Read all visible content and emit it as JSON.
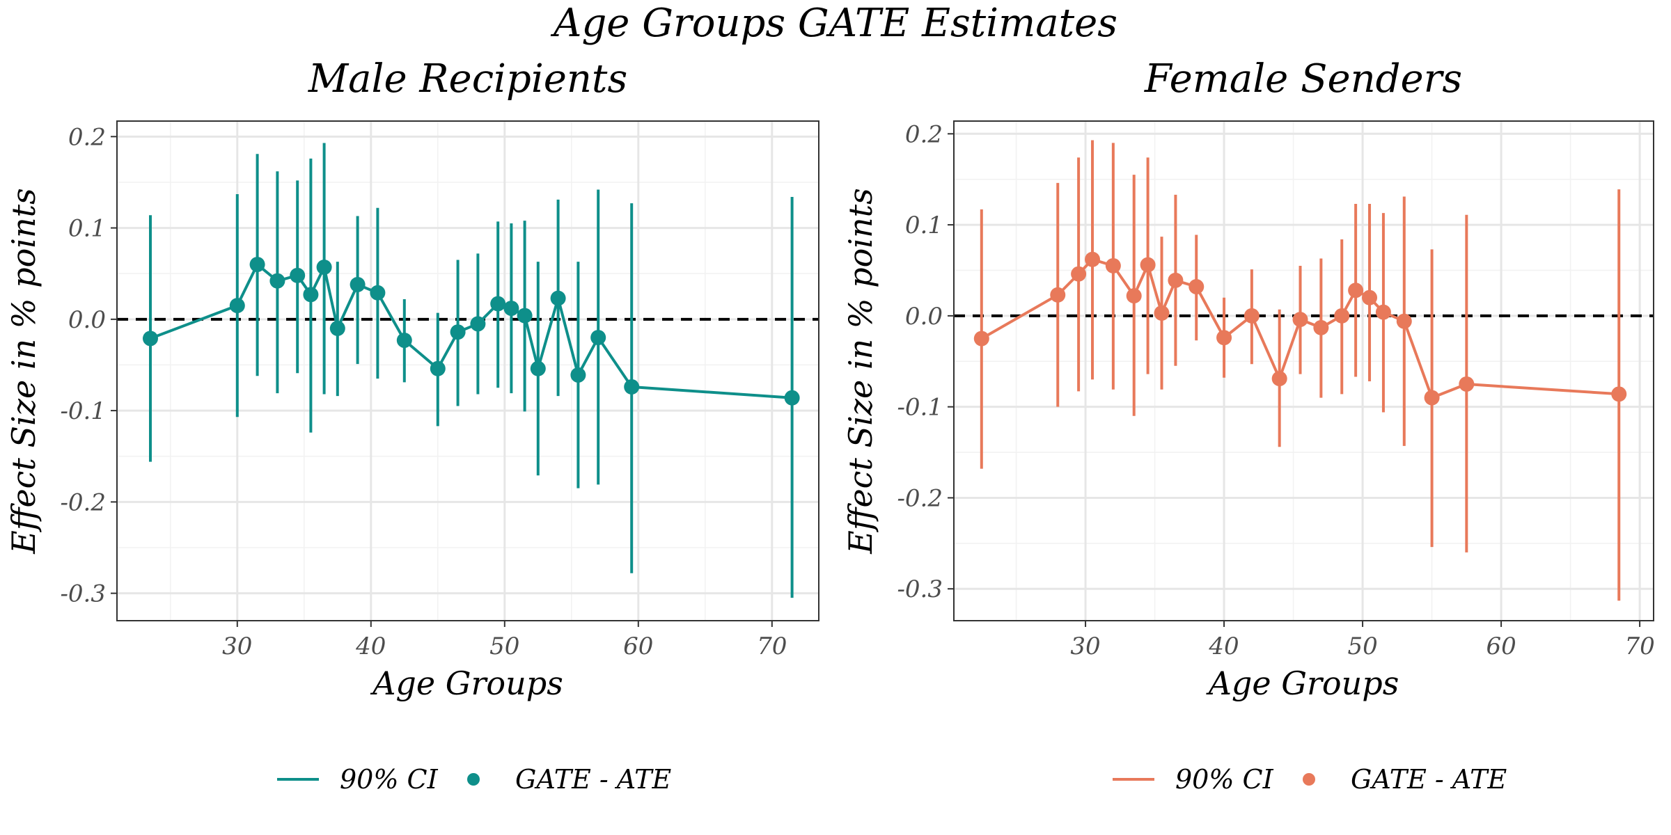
{
  "figure": {
    "title": "Age Groups GATE Estimates"
  },
  "chart_data": [
    {
      "type": "scatter",
      "title": "Male Recipients",
      "xlabel": "Age Groups",
      "ylabel": "Effect Size in % points",
      "color": "#0e8f8a",
      "xlim": [
        21,
        73.5
      ],
      "ylim": [
        -0.33,
        0.217
      ],
      "xticks": [
        30,
        40,
        50,
        60,
        70
      ],
      "xtick_labels": [
        "30",
        "40",
        "50",
        "60",
        "70"
      ],
      "yticks": [
        -0.3,
        -0.2,
        -0.1,
        0.0,
        0.1,
        0.2
      ],
      "ytick_labels": [
        "-0.3",
        "-0.2",
        "-0.1",
        "0.0",
        "0.1",
        "0.2"
      ],
      "reference_line": 0.0,
      "series": [
        {
          "name": "GATE - ATE",
          "kind": "point+line"
        },
        {
          "name": "90% CI",
          "kind": "errorbar"
        }
      ],
      "x": [
        23.5,
        30.0,
        31.5,
        33.0,
        34.5,
        35.5,
        36.5,
        37.5,
        39.0,
        40.5,
        42.5,
        45.0,
        46.5,
        48.0,
        49.5,
        50.5,
        51.5,
        52.5,
        54.0,
        55.5,
        57.0,
        59.5,
        71.5
      ],
      "y": [
        -0.021,
        0.015,
        0.06,
        0.042,
        0.048,
        0.027,
        0.057,
        -0.01,
        0.038,
        0.029,
        -0.023,
        -0.054,
        -0.014,
        -0.005,
        0.017,
        0.012,
        0.004,
        -0.054,
        0.023,
        -0.061,
        -0.02,
        -0.074,
        -0.086
      ],
      "lower": [
        -0.156,
        -0.107,
        -0.062,
        -0.081,
        -0.059,
        -0.124,
        -0.082,
        -0.084,
        -0.049,
        -0.065,
        -0.069,
        -0.117,
        -0.095,
        -0.082,
        -0.075,
        -0.081,
        -0.101,
        -0.171,
        -0.084,
        -0.185,
        -0.181,
        -0.278,
        -0.305
      ],
      "upper": [
        0.114,
        0.137,
        0.181,
        0.162,
        0.152,
        0.176,
        0.193,
        0.063,
        0.113,
        0.122,
        0.022,
        0.007,
        0.065,
        0.072,
        0.107,
        0.105,
        0.108,
        0.063,
        0.131,
        0.063,
        0.142,
        0.127,
        0.134
      ],
      "legend": {
        "ci_label": "90% CI",
        "point_label": "GATE - ATE",
        "position": "bottom"
      }
    },
    {
      "type": "scatter",
      "title": "Female Senders",
      "xlabel": "Age Groups",
      "ylabel": "Effect Size in % points",
      "color": "#e8795a",
      "xlim": [
        20.5,
        71.0
      ],
      "ylim": [
        -0.335,
        0.214
      ],
      "xticks": [
        30,
        40,
        50,
        60,
        70
      ],
      "xtick_labels": [
        "30",
        "40",
        "50",
        "60",
        "70"
      ],
      "yticks": [
        -0.3,
        -0.2,
        -0.1,
        0.0,
        0.1,
        0.2
      ],
      "ytick_labels": [
        "-0.3",
        "-0.2",
        "-0.1",
        "0.0",
        "0.1",
        "0.2"
      ],
      "reference_line": 0.0,
      "series": [
        {
          "name": "GATE - ATE",
          "kind": "point+line"
        },
        {
          "name": "90% CI",
          "kind": "errorbar"
        }
      ],
      "x": [
        22.5,
        28.0,
        29.5,
        30.5,
        32.0,
        33.5,
        34.5,
        35.5,
        36.5,
        38.0,
        40.0,
        42.0,
        44.0,
        45.5,
        47.0,
        48.5,
        49.5,
        50.5,
        51.5,
        53.0,
        55.0,
        57.5,
        68.5
      ],
      "y": [
        -0.025,
        0.023,
        0.046,
        0.062,
        0.055,
        0.022,
        0.056,
        0.003,
        0.039,
        0.032,
        -0.024,
        0.0,
        -0.069,
        -0.004,
        -0.013,
        0.0,
        0.028,
        0.02,
        0.004,
        -0.006,
        -0.09,
        -0.075,
        -0.086
      ],
      "lower": [
        -0.168,
        -0.1,
        -0.083,
        -0.07,
        -0.081,
        -0.11,
        -0.064,
        -0.081,
        -0.055,
        -0.027,
        -0.068,
        -0.053,
        -0.144,
        -0.064,
        -0.09,
        -0.086,
        -0.067,
        -0.072,
        -0.106,
        -0.143,
        -0.254,
        -0.26,
        -0.313
      ],
      "upper": [
        0.117,
        0.146,
        0.174,
        0.193,
        0.19,
        0.155,
        0.174,
        0.087,
        0.133,
        0.089,
        0.02,
        0.051,
        0.007,
        0.055,
        0.063,
        0.084,
        0.123,
        0.123,
        0.113,
        0.131,
        0.073,
        0.111,
        0.139
      ],
      "legend": {
        "ci_label": "90% CI",
        "point_label": "GATE - ATE",
        "position": "bottom"
      }
    }
  ]
}
